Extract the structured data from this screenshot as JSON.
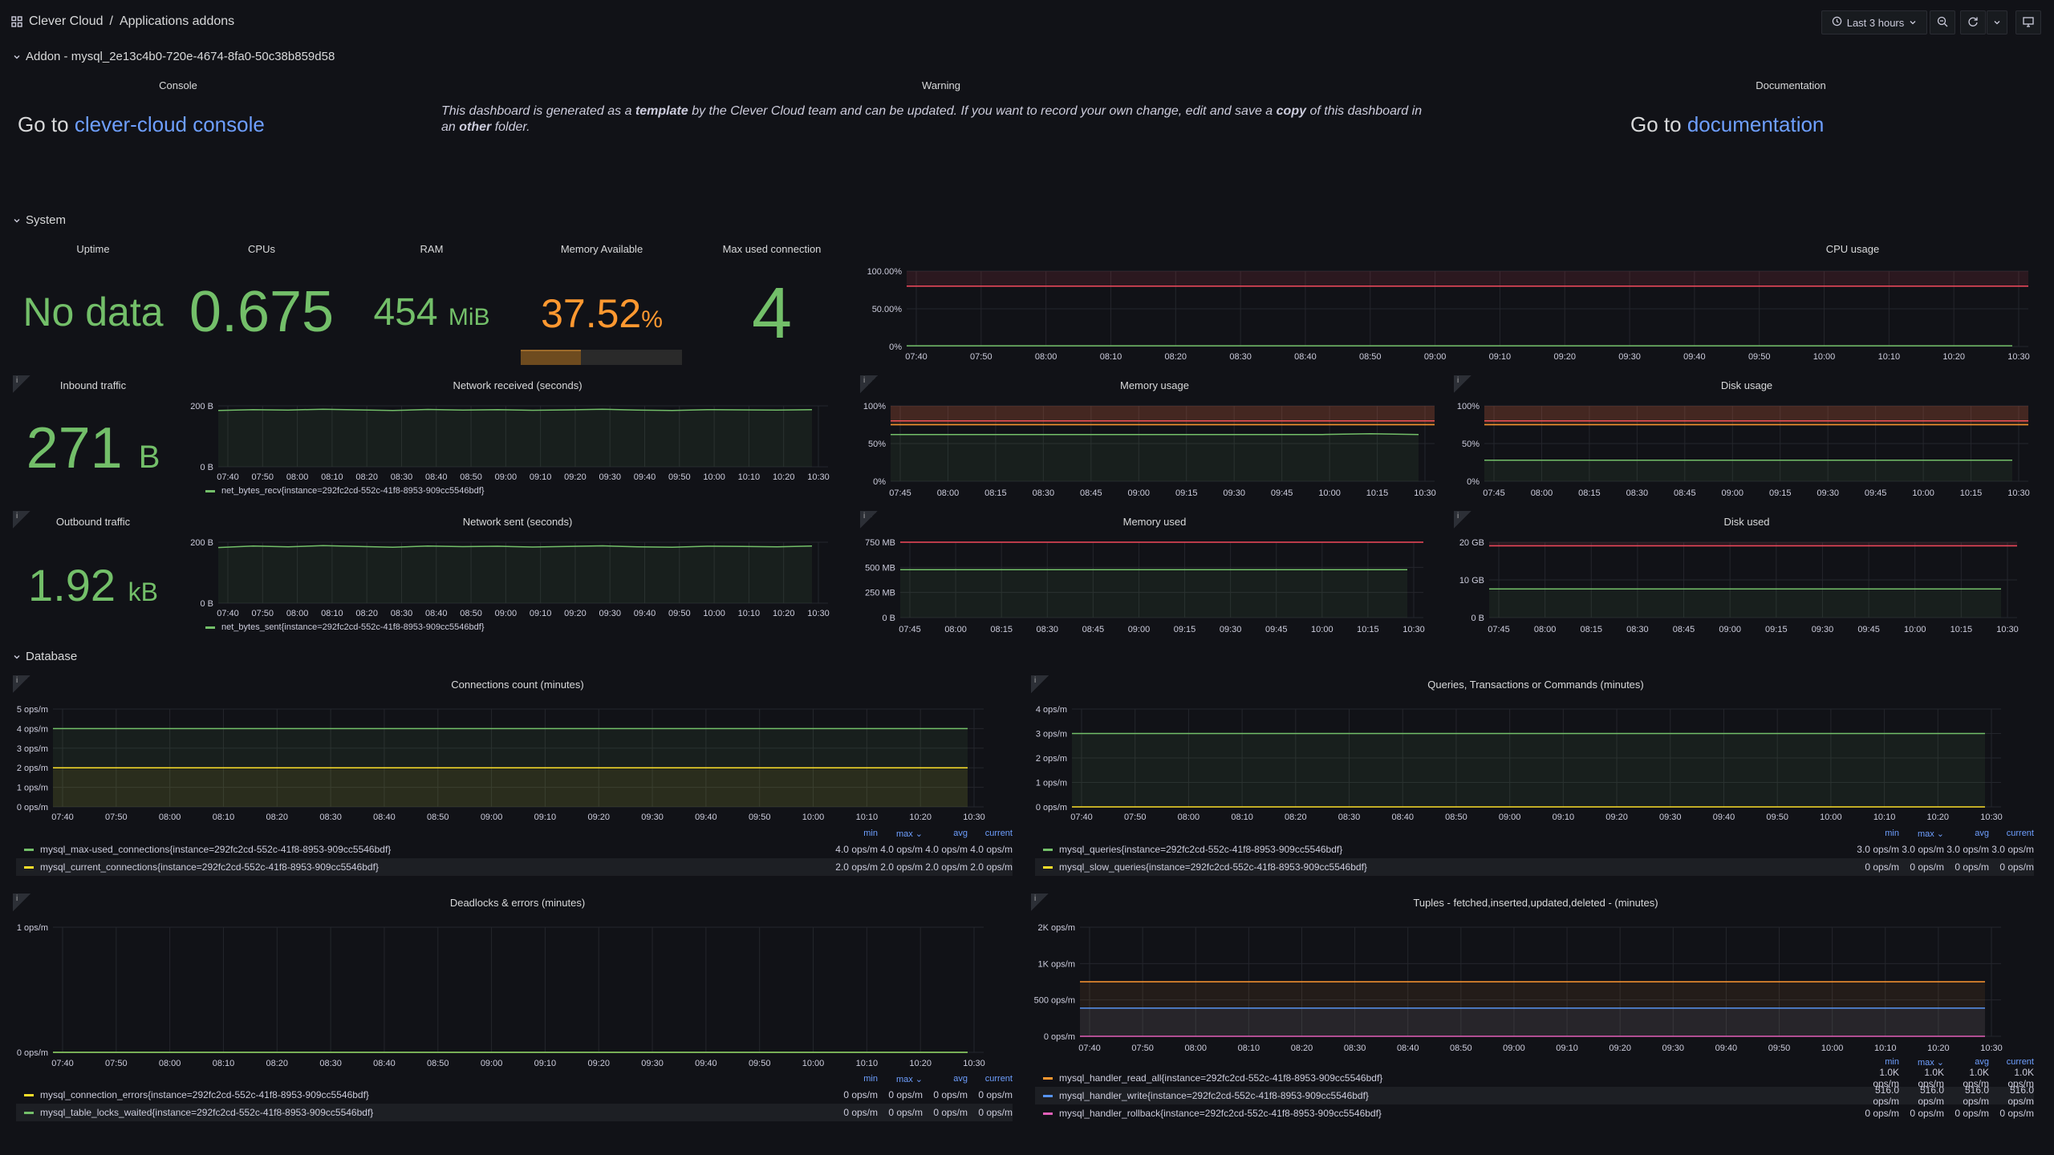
{
  "topbar": {
    "app": "Clever Cloud",
    "sep": "/",
    "page": "Applications addons",
    "timerange": "Last 3 hours"
  },
  "rows": {
    "addon": "Addon - mysql_2e13c4b0-720e-4674-8fa0-50c38b859d58",
    "system": "System",
    "database": "Database"
  },
  "header_panels": {
    "console_title": "Console",
    "console_prefix": "Go to",
    "console_link": "clever-cloud console",
    "warning_title": "Warning",
    "warning_p1": "This dashboard is generated as a",
    "warning_b1": "template",
    "warning_p2": "by the Clever Cloud team and can be updated. If you want to record your own change, edit and save a",
    "warning_b2": "copy",
    "warning_p3": "of this dashboard in an",
    "warning_b3": "other",
    "warning_p4": "folder.",
    "doc_title": "Documentation",
    "doc_prefix": "Go to",
    "doc_link": "documentation"
  },
  "stats": {
    "uptime_title": "Uptime",
    "uptime_value": "No data",
    "cpus_title": "CPUs",
    "cpus_value": "0.675",
    "ram_title": "RAM",
    "ram_value": "454",
    "ram_unit": "MiB",
    "mem_avail_title": "Memory Available",
    "mem_avail_value": "37.52",
    "mem_avail_unit": "%",
    "mem_avail_fraction": 0.3752,
    "max_conn_title": "Max used connection",
    "max_conn_value": "4",
    "inbound_title": "Inbound traffic",
    "inbound_value": "271",
    "inbound_unit": "B",
    "outbound_title": "Outbound traffic",
    "outbound_value": "1.92",
    "outbound_unit": "kB"
  },
  "times_long": [
    "07:40",
    "07:50",
    "08:00",
    "08:10",
    "08:20",
    "08:30",
    "08:40",
    "08:50",
    "09:00",
    "09:10",
    "09:20",
    "09:30",
    "09:40",
    "09:50",
    "10:00",
    "10:10",
    "10:20",
    "10:30"
  ],
  "times_short": [
    "07:45",
    "08:00",
    "08:15",
    "08:30",
    "08:45",
    "09:00",
    "09:15",
    "09:30",
    "09:45",
    "10:00",
    "10:15",
    "10:30"
  ],
  "colors": {
    "green": "#73bf69",
    "yellow": "#fade2a",
    "red": "#f2495c",
    "orange": "#ff9830",
    "blue": "#5794f2",
    "pink": "#e25fb8",
    "grid": "#24262c",
    "axis": "#ccccdc"
  },
  "chart_data": [
    {
      "id": "cpu",
      "title": "CPU usage",
      "type": "line",
      "yticks": [
        "100.00%",
        "50.00%",
        "0%"
      ],
      "ymax": 100,
      "series": [
        {
          "color": "#73bf69",
          "values": [
            1,
            1,
            1,
            1,
            1,
            1,
            1,
            1,
            1,
            1,
            1,
            1,
            1,
            1,
            1,
            1,
            1,
            1
          ]
        }
      ],
      "thresholds": [
        {
          "value": 80,
          "color": "#f2495c"
        }
      ],
      "xticks": "long"
    },
    {
      "id": "netrecv",
      "title": "Network received (seconds)",
      "type": "area",
      "yticks": [
        "200 B",
        "0 B"
      ],
      "ymax": 290,
      "series": [
        {
          "name": "net_bytes_recv{instance=292fc2cd-552c-41f8-8953-909cc5546bdf}",
          "color": "#73bf69",
          "values": [
            268,
            272,
            270,
            274,
            271,
            268,
            273,
            270,
            272,
            269,
            271,
            274,
            270,
            268,
            272,
            271,
            270,
            272
          ]
        }
      ],
      "xticks": "long"
    },
    {
      "id": "netsent",
      "title": "Network sent (seconds)",
      "type": "area",
      "yticks": [
        "200 B",
        "0 B"
      ],
      "ymax": 290,
      "series": [
        {
          "name": "net_bytes_sent{instance=292fc2cd-552c-41f8-8953-909cc5546bdf}",
          "color": "#73bf69",
          "values": [
            265,
            272,
            268,
            274,
            270,
            266,
            272,
            269,
            271,
            267,
            270,
            273,
            268,
            266,
            271,
            270,
            268,
            272
          ]
        }
      ],
      "xticks": "long"
    },
    {
      "id": "memusage",
      "title": "Memory usage",
      "type": "line",
      "yticks": [
        "100%",
        "50%",
        "0%"
      ],
      "ymax": 100,
      "series": [
        {
          "color": "#73bf69",
          "values": [
            62,
            62,
            62,
            62,
            62,
            62,
            62,
            62,
            62,
            62,
            63,
            62
          ]
        }
      ],
      "thresholds": [
        {
          "value": 80,
          "color": "#f2495c"
        },
        {
          "value": 75,
          "color": "#ff9830"
        }
      ],
      "xticks": "short"
    },
    {
      "id": "diskusage",
      "title": "Disk usage",
      "type": "line",
      "yticks": [
        "100%",
        "50%",
        "0%"
      ],
      "ymax": 100,
      "series": [
        {
          "color": "#73bf69",
          "values": [
            28,
            28,
            28,
            28,
            28,
            28,
            28,
            28,
            28,
            28,
            28,
            28
          ]
        }
      ],
      "thresholds": [
        {
          "value": 80,
          "color": "#f2495c"
        },
        {
          "value": 75,
          "color": "#ff9830"
        }
      ],
      "xticks": "short"
    },
    {
      "id": "memused",
      "title": "Memory used",
      "type": "line",
      "yticks": [
        "750 MB",
        "500 MB",
        "250 MB",
        "0 B"
      ],
      "ymax": 750,
      "series": [
        {
          "color": "#73bf69",
          "values": [
            476,
            476,
            476,
            476,
            476,
            476,
            476,
            476,
            476,
            476,
            476,
            476
          ]
        }
      ],
      "thresholds": [
        {
          "value": 750,
          "color": "#f2495c"
        }
      ],
      "xticks": "short"
    },
    {
      "id": "diskused",
      "title": "Disk used",
      "type": "line",
      "yticks": [
        "20 GB",
        "10 GB",
        "0 B"
      ],
      "ymax": 21,
      "series": [
        {
          "color": "#73bf69",
          "values": [
            8,
            8,
            8,
            8,
            8,
            8,
            8,
            8,
            8,
            8,
            8,
            8
          ]
        }
      ],
      "thresholds": [
        {
          "value": 20,
          "color": "#f2495c"
        }
      ],
      "xticks": "short"
    },
    {
      "id": "connections",
      "title": "Connections count (minutes)",
      "type": "area",
      "yticks": [
        "5 ops/m",
        "4 ops/m",
        "3 ops/m",
        "2 ops/m",
        "1 ops/m",
        "0 ops/m"
      ],
      "ymax": 5,
      "series": [
        {
          "name": "mysql_max-used_connections{instance=292fc2cd-552c-41f8-8953-909cc5546bdf}",
          "color": "#73bf69",
          "values": [
            4,
            4,
            4,
            4,
            4,
            4,
            4,
            4,
            4,
            4,
            4,
            4,
            4,
            4,
            4,
            4,
            4,
            4
          ],
          "min": "4.0 ops/m",
          "max": "4.0 ops/m",
          "avg": "4.0 ops/m",
          "current": "4.0 ops/m"
        },
        {
          "name": "mysql_current_connections{instance=292fc2cd-552c-41f8-8953-909cc5546bdf}",
          "color": "#fade2a",
          "values": [
            2,
            2,
            2,
            2,
            2,
            2,
            2,
            2,
            2,
            2,
            2,
            2,
            2,
            2,
            2,
            2,
            2,
            2
          ],
          "min": "2.0 ops/m",
          "max": "2.0 ops/m",
          "avg": "2.0 ops/m",
          "current": "2.0 ops/m"
        }
      ],
      "xticks": "long"
    },
    {
      "id": "queries",
      "title": "Queries, Transactions or Commands (minutes)",
      "type": "area",
      "yticks": [
        "4 ops/m",
        "3 ops/m",
        "2 ops/m",
        "1 ops/m",
        "0 ops/m"
      ],
      "ymax": 4,
      "series": [
        {
          "name": "mysql_queries{instance=292fc2cd-552c-41f8-8953-909cc5546bdf}",
          "color": "#73bf69",
          "values": [
            3,
            3,
            3,
            3,
            3,
            3,
            3,
            3,
            3,
            3,
            3,
            3,
            3,
            3,
            3,
            3,
            3,
            3
          ],
          "min": "3.0 ops/m",
          "max": "3.0 ops/m",
          "avg": "3.0 ops/m",
          "current": "3.0 ops/m"
        },
        {
          "name": "mysql_slow_queries{instance=292fc2cd-552c-41f8-8953-909cc5546bdf}",
          "color": "#fade2a",
          "values": [
            0,
            0,
            0,
            0,
            0,
            0,
            0,
            0,
            0,
            0,
            0,
            0,
            0,
            0,
            0,
            0,
            0,
            0
          ],
          "min": "0 ops/m",
          "max": "0 ops/m",
          "avg": "0 ops/m",
          "current": "0 ops/m"
        }
      ],
      "xticks": "long"
    },
    {
      "id": "deadlocks",
      "title": "Deadlocks & errors (minutes)",
      "type": "line",
      "yticks": [
        "1 ops/m",
        "0 ops/m"
      ],
      "ymax": 1,
      "series": [
        {
          "name": "mysql_connection_errors{instance=292fc2cd-552c-41f8-8953-909cc5546bdf}",
          "color": "#fade2a",
          "values": [
            0,
            0,
            0,
            0,
            0,
            0,
            0,
            0,
            0,
            0,
            0,
            0,
            0,
            0,
            0,
            0,
            0,
            0
          ],
          "min": "0 ops/m",
          "max": "0 ops/m",
          "avg": "0 ops/m",
          "current": "0 ops/m"
        },
        {
          "name": "mysql_table_locks_waited{instance=292fc2cd-552c-41f8-8953-909cc5546bdf}",
          "color": "#73bf69",
          "values": [
            0,
            0,
            0,
            0,
            0,
            0,
            0,
            0,
            0,
            0,
            0,
            0,
            0,
            0,
            0,
            0,
            0,
            0
          ],
          "min": "0 ops/m",
          "max": "0 ops/m",
          "avg": "0 ops/m",
          "current": "0 ops/m"
        }
      ],
      "xticks": "long"
    },
    {
      "id": "tuples",
      "title": "Tuples - fetched,inserted,updated,deleted - (minutes)",
      "type": "area",
      "yticks": [
        "2K ops/m",
        "1K ops/m",
        "500 ops/m",
        "0 ops/m"
      ],
      "ymax": 2000,
      "series": [
        {
          "name": "mysql_handler_read_all{instance=292fc2cd-552c-41f8-8953-909cc5546bdf}",
          "color": "#ff9830",
          "values": [
            1000,
            1000,
            1000,
            1000,
            1000,
            1000,
            1000,
            1000,
            1000,
            1000,
            1000,
            1000,
            1000,
            1000,
            1000,
            1000,
            1000,
            1000
          ],
          "min": "1.0K ops/m",
          "max": "1.0K ops/m",
          "avg": "1.0K ops/m",
          "current": "1.0K ops/m"
        },
        {
          "name": "mysql_handler_write{instance=292fc2cd-552c-41f8-8953-909cc5546bdf}",
          "color": "#5794f2",
          "values": [
            516,
            516,
            516,
            516,
            516,
            516,
            516,
            516,
            516,
            516,
            516,
            516,
            516,
            516,
            516,
            516,
            516,
            516
          ],
          "min": "516.0 ops/m",
          "max": "516.0 ops/m",
          "avg": "516.0 ops/m",
          "current": "516.0 ops/m"
        },
        {
          "name": "mysql_handler_rollback{instance=292fc2cd-552c-41f8-8953-909cc5546bdf}",
          "color": "#e25fb8",
          "values": [
            0,
            0,
            0,
            0,
            0,
            0,
            0,
            0,
            0,
            0,
            0,
            0,
            0,
            0,
            0,
            0,
            0,
            0
          ],
          "min": "0 ops/m",
          "max": "0 ops/m",
          "avg": "0 ops/m",
          "current": "0 ops/m"
        }
      ],
      "xticks": "long"
    }
  ],
  "legend_headers": {
    "min": "min",
    "max": "max",
    "avg": "avg",
    "current": "current"
  }
}
